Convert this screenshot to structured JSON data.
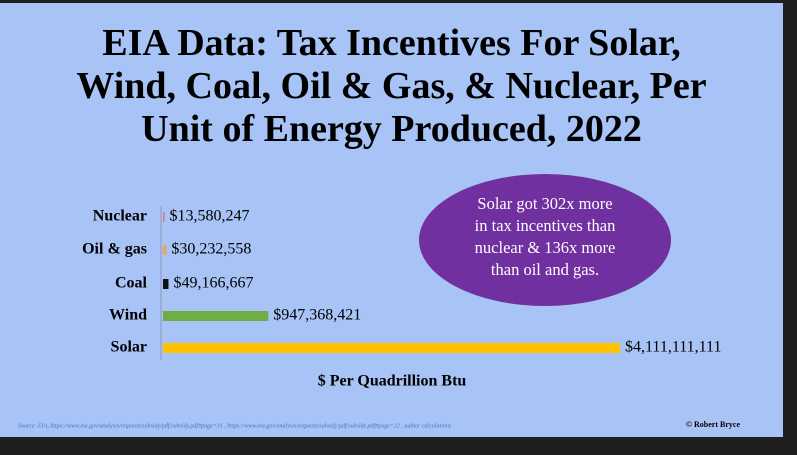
{
  "chart_data": {
    "type": "hbar",
    "title": "EIA Data: Tax Incentives For Solar,\nWind, Coal, Oil & Gas, & Nuclear, Per\nUnit of Energy Produced, 2022",
    "categories": [
      "Nuclear",
      "Oil & gas",
      "Coal",
      "Wind",
      "Solar"
    ],
    "values": [
      13580247,
      30232558,
      49166667,
      947368421,
      4111111111
    ],
    "value_labels": [
      "$13,580,247",
      "$30,232,558",
      "$49,166,667",
      "$947,368,421",
      "$4,111,111,111"
    ],
    "colors": [
      "#e8756a",
      "#f0a060",
      "#111111",
      "#70ad47",
      "#ffc000"
    ],
    "xlim": [
      0,
      4111111111
    ],
    "x_label": "$ Per Quadrillion Btu",
    "annotation": "Solar got 302x more\nin tax incentives than\nnuclear & 136x more\nthan oil and gas.",
    "source": "Source: EIA, https://www.eia.gov/analysis/requests/subsidy/pdf/subsidy.pdf#page=31 ,  https://www.eia.gov/analysis/requests/subsidy/pdf/subsidy.pdf#page=22 ,  author calculations",
    "credit": "© Robert Bryce"
  }
}
